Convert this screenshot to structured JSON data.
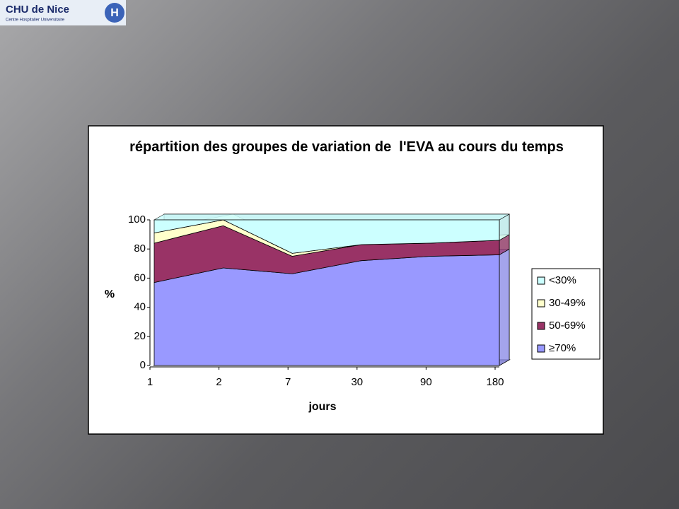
{
  "header": {
    "logo_title": "CHU de Nice",
    "logo_subtitle": "Centre Hospitalier Universitaire"
  },
  "chart_data": {
    "type": "stacked_area",
    "title": "répartition des groupes de variation de  l'EVA au cours du temps",
    "x_label": "jours",
    "y_label": "%",
    "categories": [
      "1",
      "2",
      "7",
      "30",
      "90",
      "180"
    ],
    "ylim": [
      0,
      100
    ],
    "yticks": [
      0,
      20,
      40,
      60,
      80,
      100
    ],
    "grid": false,
    "legend": "right",
    "series": [
      {
        "name": "≥70%",
        "color": "#9999ff",
        "values": [
          57,
          67,
          63,
          72,
          75,
          76
        ]
      },
      {
        "name": "50-69%",
        "color": "#993366",
        "values": [
          27,
          29,
          12,
          11,
          9,
          10
        ]
      },
      {
        "name": "30-49%",
        "color": "#ffffcc",
        "values": [
          7,
          4,
          2,
          0,
          0,
          0
        ]
      },
      {
        "name": "<30%",
        "color": "#ccffff",
        "values": [
          9,
          0,
          23,
          17,
          16,
          14
        ]
      }
    ]
  }
}
